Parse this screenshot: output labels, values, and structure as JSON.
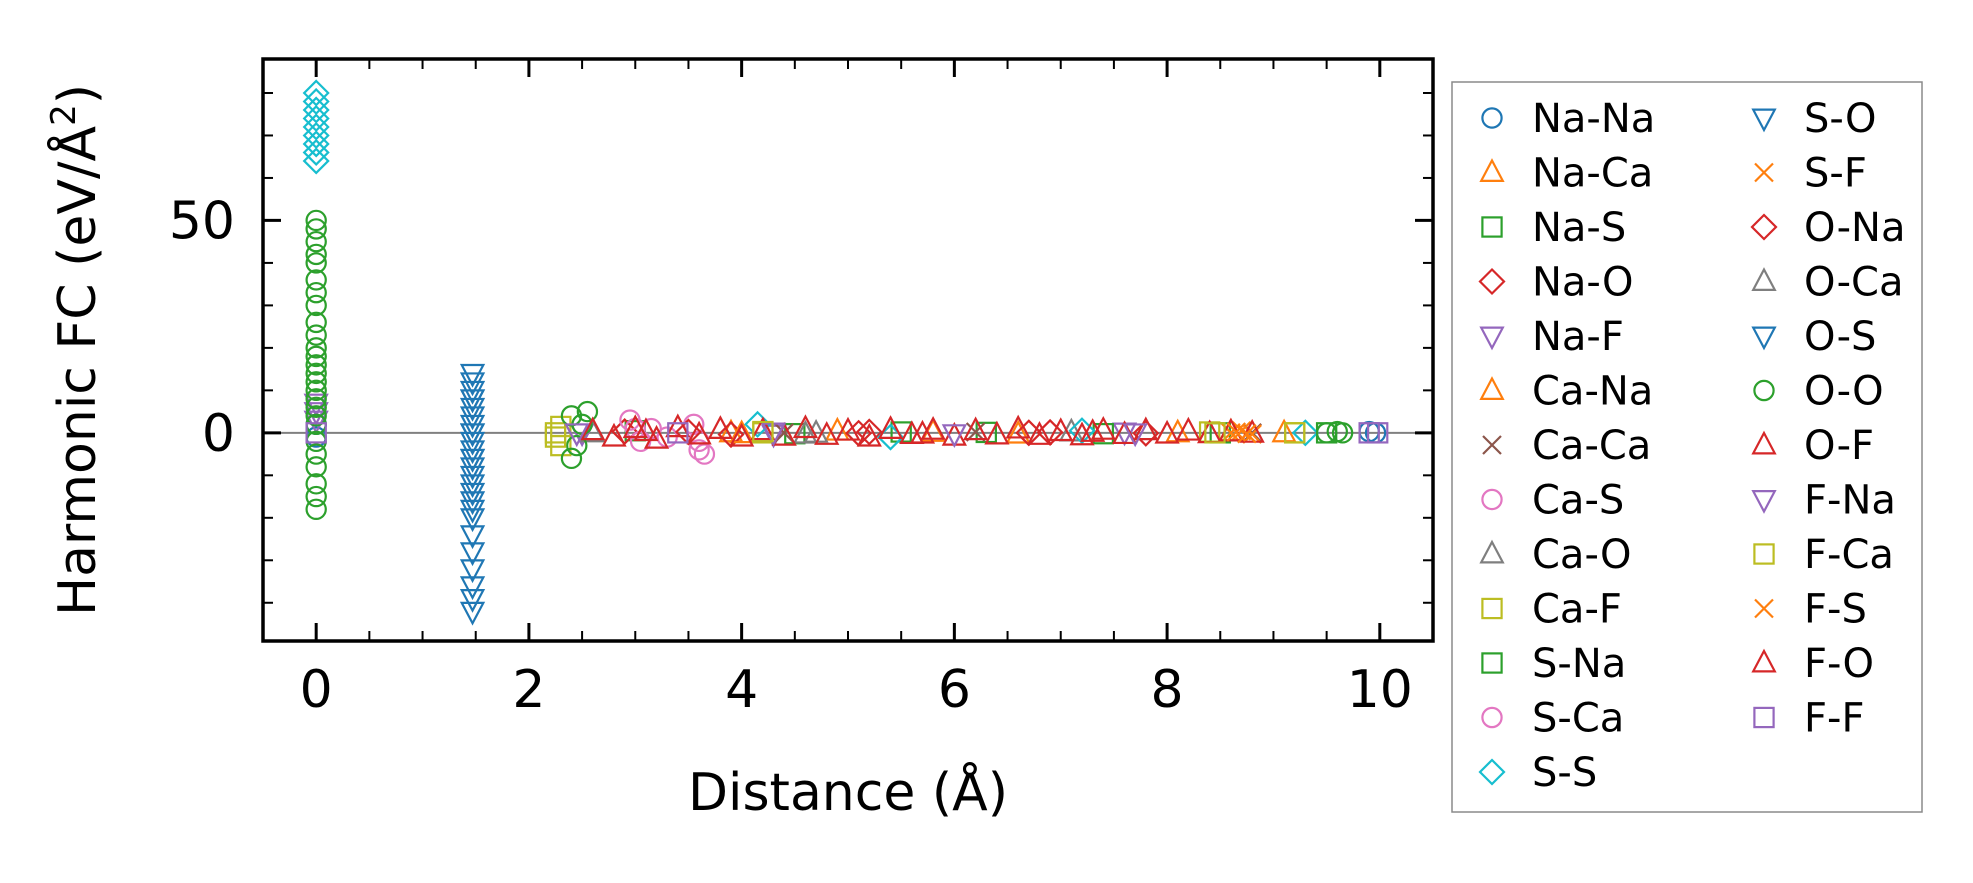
{
  "chart_data": {
    "type": "scatter",
    "title": "",
    "xlabel": "Distance (Å)",
    "ylabel": "Harmonic FC (eV/Å",
    "ylabel_superscript": "2",
    "ylabel_suffix": ")",
    "xlim": [
      -0.5,
      10.5
    ],
    "ylim": [
      -49,
      88
    ],
    "xticks": [
      0,
      2,
      4,
      6,
      8,
      10
    ],
    "yticks": [
      0,
      50
    ],
    "legend_position": "outside-right",
    "colors": {
      "blue": "#1f77b4",
      "orange": "#ff7f0e",
      "green": "#2ca02c",
      "red": "#d62728",
      "purple": "#9467bd",
      "brown": "#8c564b",
      "pink": "#e377c2",
      "gray": "#7f7f7f",
      "olive": "#bcbd22",
      "cyan": "#17becf"
    },
    "series": [
      {
        "name": "Na-Na",
        "marker": "circle",
        "color": "#1f77b4",
        "x": [
          0,
          0,
          9.96,
          9.9
        ],
        "y": [
          2,
          -1,
          0,
          0.3
        ]
      },
      {
        "name": "Na-Ca",
        "marker": "triangle-up",
        "color": "#ff7f0e",
        "x": [
          3.9,
          4.9,
          6.6,
          8.6,
          9.1
        ],
        "y": [
          0,
          0.4,
          -0.3,
          0.2,
          0
        ]
      },
      {
        "name": "Na-S",
        "marker": "square",
        "color": "#2ca02c",
        "x": [
          3.0,
          4.5,
          6.3,
          8.5
        ],
        "y": [
          0.5,
          -0.2,
          0.1,
          0
        ]
      },
      {
        "name": "Na-O",
        "marker": "diamond",
        "color": "#d62728",
        "x": [
          2.9,
          3.9,
          5.2,
          6.9,
          7.8
        ],
        "y": [
          0.3,
          -0.4,
          0.2,
          0.1,
          -0.1
        ]
      },
      {
        "name": "Na-F",
        "marker": "triangle-down",
        "color": "#9467bd",
        "x": [
          0,
          0,
          0,
          2.5,
          4.3,
          7.6
        ],
        "y": [
          7,
          5,
          3,
          0,
          -0.3,
          0.2
        ]
      },
      {
        "name": "Ca-Na",
        "marker": "triangle-up",
        "color": "#ff7f0e",
        "x": [
          4.0,
          5.8,
          8.1
        ],
        "y": [
          -0.2,
          0.1,
          0
        ]
      },
      {
        "name": "Ca-Ca",
        "marker": "x",
        "color": "#8c564b",
        "x": [
          4.4,
          6.2,
          8.8
        ],
        "y": [
          0,
          0.2,
          0
        ]
      },
      {
        "name": "Ca-S",
        "marker": "circle",
        "color": "#e377c2",
        "x": [
          2.95,
          3.05,
          3.15,
          3.3,
          3.55,
          3.6,
          3.65
        ],
        "y": [
          3,
          -2,
          1,
          -1,
          2,
          -4,
          -5
        ]
      },
      {
        "name": "Ca-O",
        "marker": "triangle-up",
        "color": "#7f7f7f",
        "x": [
          2.6,
          4.6,
          7.1
        ],
        "y": [
          0,
          -0.3,
          0.2
        ]
      },
      {
        "name": "Ca-F",
        "marker": "square",
        "color": "#bcbd22",
        "x": [
          2.25,
          2.3,
          2.3,
          4.2,
          8.4,
          9.2
        ],
        "y": [
          0,
          -3,
          1.5,
          0,
          0.2,
          0
        ]
      },
      {
        "name": "S-Na",
        "marker": "square",
        "color": "#2ca02c",
        "x": [
          5.5,
          7.4,
          9.5
        ],
        "y": [
          0.2,
          -0.2,
          0
        ]
      },
      {
        "name": "S-Ca",
        "marker": "circle",
        "color": "#e377c2",
        "x": [
          3.0,
          3.6
        ],
        "y": [
          1,
          -2
        ]
      },
      {
        "name": "S-S",
        "marker": "diamond",
        "color": "#17becf",
        "x": [
          0,
          0,
          0,
          0,
          0,
          0,
          0,
          0,
          0,
          4.15,
          5.4,
          7.2,
          9.3
        ],
        "y": [
          80,
          78,
          76,
          74,
          72,
          70,
          68,
          66,
          64,
          2,
          -1,
          0.5,
          0
        ]
      },
      {
        "name": "S-O",
        "marker": "triangle-down",
        "color": "#1f77b4",
        "x": [
          1.47,
          1.47,
          1.47,
          1.47,
          1.47,
          1.47,
          1.47,
          1.47,
          1.47,
          1.47,
          1.47,
          1.47,
          1.47,
          1.47,
          1.47,
          1.47,
          1.47,
          1.47,
          1.47,
          1.47,
          1.47,
          1.47,
          1.47,
          1.47
        ],
        "y": [
          14,
          12,
          10,
          8,
          6,
          4,
          2,
          0,
          -2,
          -4,
          -6,
          -8,
          -10,
          -12,
          -14,
          -16,
          -18,
          -20,
          -24,
          -28,
          -32,
          -36,
          -39,
          -42
        ]
      },
      {
        "name": "S-F",
        "marker": "x",
        "color": "#ff7f0e",
        "x": [
          8.6,
          8.7,
          8.8
        ],
        "y": [
          0,
          0.5,
          -0.3
        ]
      },
      {
        "name": "O-Na",
        "marker": "diamond",
        "color": "#d62728",
        "x": [
          3.5,
          5.1,
          6.7
        ],
        "y": [
          0.2,
          -0.1,
          0
        ]
      },
      {
        "name": "O-Ca",
        "marker": "triangle-up",
        "color": "#7f7f7f",
        "x": [
          2.6,
          4.7
        ],
        "y": [
          0.1,
          -0.1
        ]
      },
      {
        "name": "O-S",
        "marker": "triangle-down",
        "color": "#1f77b4",
        "x": [
          1.47,
          1.47,
          1.47
        ],
        "y": [
          0,
          -6,
          8
        ]
      },
      {
        "name": "O-O",
        "marker": "circle",
        "color": "#2ca02c",
        "x": [
          0,
          0,
          0,
          0,
          0,
          0,
          0,
          0,
          0,
          0,
          0,
          0,
          0,
          0,
          0,
          0,
          0,
          0,
          0,
          0,
          0,
          0,
          0,
          0,
          0,
          0,
          2.4,
          2.4,
          2.45,
          2.5,
          2.55,
          9.5,
          9.6,
          9.65
        ],
        "y": [
          50,
          48,
          45,
          42,
          40,
          36,
          33,
          30,
          26,
          23,
          20,
          18,
          16,
          14,
          12,
          10,
          8,
          6,
          4,
          2,
          -2,
          -5,
          -8,
          -12,
          -15,
          -18,
          -6,
          4,
          -3,
          2,
          5,
          0,
          0.3,
          0
        ]
      },
      {
        "name": "O-F",
        "marker": "triangle-up",
        "color": "#d62728",
        "x": [
          2.6,
          2.8,
          3.0,
          3.2,
          3.4,
          3.6,
          3.8,
          4.0,
          4.2,
          4.4,
          4.6,
          4.8,
          5.0,
          5.2,
          5.4,
          5.6,
          5.8,
          6.0,
          6.2,
          6.4,
          6.6,
          6.8,
          7.0,
          7.2,
          7.4,
          7.6,
          7.8,
          8.0,
          8.2,
          8.4,
          8.6,
          8.8
        ],
        "y": [
          0.5,
          -1,
          1,
          -1.5,
          1.2,
          -0.5,
          0.8,
          -1,
          0.5,
          -0.8,
          1,
          -0.6,
          0.4,
          -1,
          0.8,
          -0.4,
          0.6,
          -0.8,
          0.5,
          -0.5,
          0.9,
          -0.6,
          0.3,
          -0.7,
          0.6,
          -0.4,
          0.5,
          -0.3,
          0.4,
          -0.2,
          0.2,
          -0.1
        ]
      },
      {
        "name": "F-Na",
        "marker": "triangle-down",
        "color": "#9467bd",
        "x": [
          2.45,
          4.3,
          6.0,
          7.7
        ],
        "y": [
          0,
          0.2,
          -0.2,
          0
        ]
      },
      {
        "name": "F-Ca",
        "marker": "square",
        "color": "#bcbd22",
        "x": [
          2.25,
          4.2,
          8.45,
          9.2
        ],
        "y": [
          -1,
          0.3,
          0,
          0
        ]
      },
      {
        "name": "F-S",
        "marker": "x",
        "color": "#ff7f0e",
        "x": [
          8.65,
          8.75
        ],
        "y": [
          0.2,
          -0.2
        ]
      },
      {
        "name": "F-O",
        "marker": "triangle-up",
        "color": "#d62728",
        "x": [
          3.1,
          5.7,
          7.3
        ],
        "y": [
          0.3,
          -0.3,
          0.1
        ]
      },
      {
        "name": "F-F",
        "marker": "square",
        "color": "#9467bd",
        "x": [
          0,
          3.4,
          9.9,
          9.98
        ],
        "y": [
          0,
          0,
          0,
          0
        ]
      }
    ]
  }
}
